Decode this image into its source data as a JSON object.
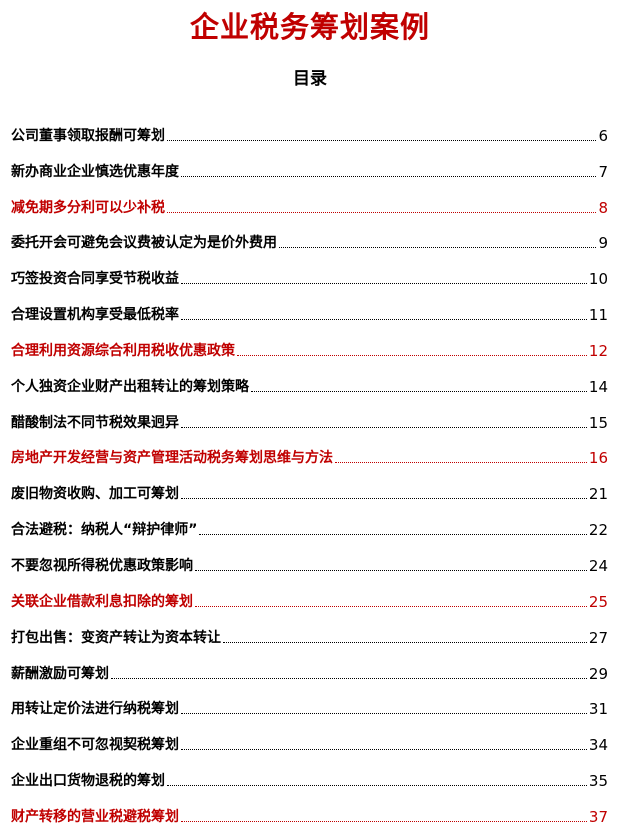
{
  "document": {
    "title": "企业税务筹划案例",
    "toc_heading": "目录",
    "highlight_color": "#c00000",
    "entries": [
      {
        "label": "公司董事领取报酬可筹划",
        "page": "6",
        "highlight": false
      },
      {
        "label": "新办商业企业慎选优惠年度",
        "page": "7",
        "highlight": false
      },
      {
        "label": "减免期多分利可以少补税",
        "page": "8",
        "highlight": true
      },
      {
        "label": "委托开会可避免会议费被认定为是价外费用",
        "page": "9",
        "highlight": false
      },
      {
        "label": "巧签投资合同享受节税收益",
        "page": "10",
        "highlight": false
      },
      {
        "label": "合理设置机构享受最低税率",
        "page": "11",
        "highlight": false
      },
      {
        "label": "合理利用资源综合利用税收优惠政策",
        "page": "12",
        "highlight": true
      },
      {
        "label": "个人独资企业财产出租转让的筹划策略",
        "page": "14",
        "highlight": false
      },
      {
        "label": "醋酸制法不同节税效果迥异",
        "page": "15",
        "highlight": false
      },
      {
        "label": "房地产开发经营与资产管理活动税务筹划思维与方法",
        "page": "16",
        "highlight": true
      },
      {
        "label": "废旧物资收购、加工可筹划",
        "page": "21",
        "highlight": false
      },
      {
        "label": "合法避税：纳税人“辩护律师”",
        "page": "22",
        "highlight": false
      },
      {
        "label": "不要忽视所得税优惠政策影响",
        "page": "24",
        "highlight": false
      },
      {
        "label": "关联企业借款利息扣除的筹划",
        "page": "25",
        "highlight": true
      },
      {
        "label": "打包出售：变资产转让为资本转让",
        "page": "27",
        "highlight": false
      },
      {
        "label": "薪酬激励可筹划",
        "page": "29",
        "highlight": false
      },
      {
        "label": "用转让定价法进行纳税筹划",
        "page": "31",
        "highlight": false
      },
      {
        "label": "企业重组不可忽视契税筹划",
        "page": "34",
        "highlight": false
      },
      {
        "label": "企业出口货物退税的筹划",
        "page": "35",
        "highlight": false
      },
      {
        "label": "财产转移的营业税避税筹划",
        "page": "37",
        "highlight": true
      }
    ]
  }
}
